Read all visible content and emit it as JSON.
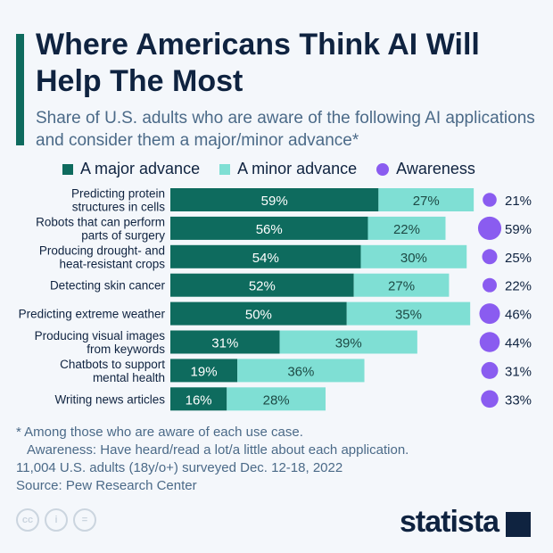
{
  "header": {
    "title": "Where Americans Think AI Will Help The Most",
    "subtitle": "Share of U.S. adults who are aware of the following AI applications and consider them a major/minor advance*"
  },
  "chart_data": {
    "type": "bar",
    "stacked": true,
    "title": "Where Americans Think AI Will Help The Most",
    "categories": [
      "Predicting protein structures in cells",
      "Robots that can perform parts of surgery",
      "Producing drought- and heat-resistant crops",
      "Detecting skin cancer",
      "Predicting extreme weather",
      "Producing visual images from keywords",
      "Chatbots to support mental health",
      "Writing news articles"
    ],
    "series": [
      {
        "name": "A major advance",
        "color": "#0e6b5e",
        "values": [
          59,
          56,
          54,
          52,
          50,
          31,
          19,
          16
        ]
      },
      {
        "name": "A minor advance",
        "color": "#7fdfd4",
        "values": [
          27,
          22,
          30,
          27,
          35,
          39,
          36,
          28
        ]
      },
      {
        "name": "Awareness",
        "color": "#8a5cf0",
        "values": [
          21,
          59,
          25,
          22,
          46,
          44,
          31,
          33
        ]
      }
    ],
    "value_suffix": "%",
    "legend": "top"
  },
  "notes": [
    "* Among those who are aware of each use case.",
    "Awareness: Have heard/read a lot/a little about each application.",
    "11,004 U.S. adults (18y/o+) surveyed Dec. 12-18, 2022",
    "Source: Pew Research Center"
  ],
  "footer": {
    "cc": [
      "cc",
      "i",
      "="
    ],
    "brand": "statista"
  }
}
